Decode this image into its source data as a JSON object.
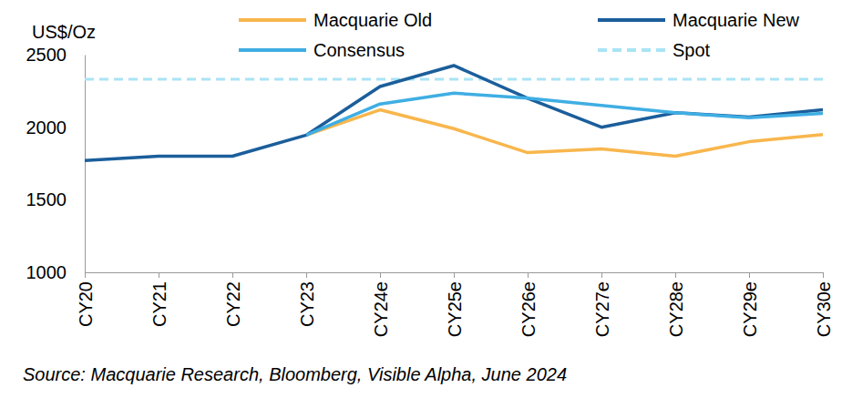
{
  "chart_data": {
    "type": "line",
    "y_label": "US$/Oz",
    "source": "Source: Macquarie Research, Bloomberg, Visible Alpha, June 2024",
    "categories": [
      "CY20",
      "CY21",
      "CY22",
      "CY23",
      "CY24e",
      "CY25e",
      "CY26e",
      "CY27e",
      "CY28e",
      "CY29e",
      "CY30e"
    ],
    "series": [
      {
        "name": "Macquarie Old",
        "color": "#f8b64c",
        "line_style": "solid",
        "values": [
          null,
          null,
          null,
          1945,
          2120,
          1990,
          1825,
          1850,
          1800,
          1900,
          1950
        ]
      },
      {
        "name": "Macquarie New",
        "color": "#1b5e9b",
        "line_style": "solid",
        "values": [
          1770,
          1800,
          1800,
          1945,
          2280,
          2425,
          2200,
          2000,
          2100,
          2070,
          2120
        ]
      },
      {
        "name": "Consensus",
        "color": "#3faee3",
        "line_style": "solid",
        "values": [
          null,
          null,
          null,
          1945,
          2160,
          2235,
          2200,
          2150,
          2100,
          2065,
          2095
        ]
      },
      {
        "name": "Spot",
        "color": "#a9e4f5",
        "line_style": "dashed",
        "values": [
          2330,
          2330,
          2330,
          2330,
          2330,
          2330,
          2330,
          2330,
          2330,
          2330,
          2330
        ]
      }
    ],
    "ylim": [
      1000,
      2500
    ],
    "yticks": [
      1000,
      1500,
      2000,
      2500
    ],
    "grid": false,
    "legend": "top"
  }
}
